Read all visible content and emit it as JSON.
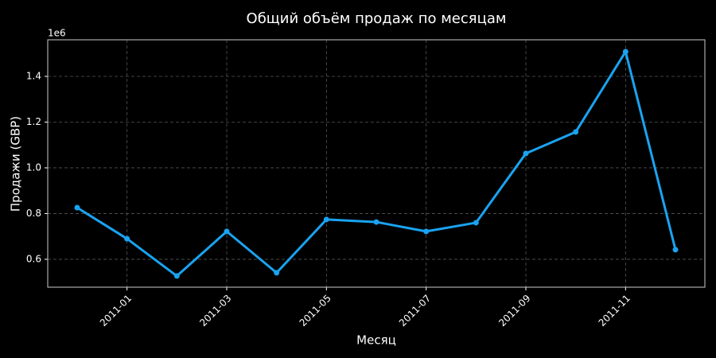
{
  "chart_data": {
    "type": "line",
    "title": "Общий объём продаж по месяцам",
    "x_label": "Месяц",
    "y_label": "Продажи (GBP)",
    "y_offset_label": "1e6",
    "categories": [
      null,
      "2011-01",
      null,
      "2011-03",
      null,
      "2011-05",
      null,
      "2011-07",
      null,
      "2011-09",
      null,
      "2011-11",
      null
    ],
    "series": [
      {
        "name": "Продажи",
        "color": "#1aa3f0",
        "values": [
          0.826,
          0.69,
          0.527,
          0.722,
          0.541,
          0.774,
          0.763,
          0.722,
          0.76,
          1.063,
          1.157,
          1.508,
          0.642
        ]
      }
    ],
    "ylim": [
      0.478,
      1.56
    ],
    "yticks": [
      0.6,
      0.8,
      {
        "value": 1,
        "label": "1.0"
      },
      1.2,
      1.4
    ],
    "grid": true
  }
}
